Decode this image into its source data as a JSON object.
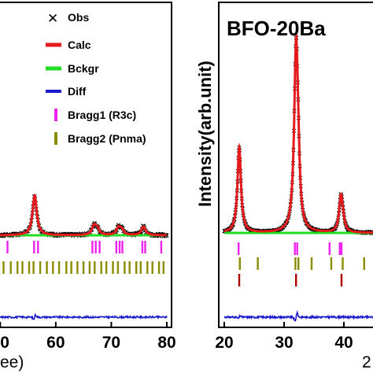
{
  "chart_data": [
    {
      "type": "line",
      "title": "",
      "xlabel_fragment": "ee)",
      "ylabel": "",
      "xlim": [
        45,
        80
      ],
      "xticks": [
        50,
        60,
        70,
        80
      ],
      "xtick_labels": [
        "50",
        "60",
        "70",
        "80"
      ],
      "legend": [
        {
          "label": "Obs",
          "marker": "x",
          "color": "#000000"
        },
        {
          "label": "Calc",
          "marker": "line",
          "color": "#e41a1c"
        },
        {
          "label": "Bckgr",
          "marker": "line",
          "color": "#22dd22"
        },
        {
          "label": "Diff",
          "marker": "line",
          "color": "#1a1acc"
        },
        {
          "label": "Bragg1 (R3c)",
          "marker": "bar",
          "color": "#ee22ee"
        },
        {
          "label": "Bragg2 (Pnma)",
          "marker": "bar",
          "color": "#8b8b00"
        }
      ],
      "legend_position": "top-right",
      "background": 0.9,
      "peaks": [
        {
          "x": 56.2,
          "height": 4.2,
          "width": 0.45
        },
        {
          "x": 66.9,
          "height": 1.0,
          "width": 0.45
        },
        {
          "x": 67.5,
          "height": 0.6,
          "width": 0.4
        },
        {
          "x": 71.3,
          "height": 0.8,
          "width": 0.45
        },
        {
          "x": 71.9,
          "height": 0.5,
          "width": 0.4
        },
        {
          "x": 75.8,
          "height": 0.9,
          "width": 0.45
        }
      ],
      "bragg1_positions": [
        51.3,
        56.1,
        56.8,
        66.6,
        67.2,
        67.9,
        70.9,
        71.5,
        72.0,
        75.6,
        76.1,
        79.0
      ],
      "bragg2_positions": [
        45.5,
        46.4,
        47.4,
        48.6,
        49.8,
        50.6,
        51.9,
        53.1,
        54.0,
        55.2,
        56.0,
        57.2,
        58.4,
        59.5,
        60.6,
        61.9,
        62.8,
        63.9,
        65.0,
        66.1,
        67.0,
        68.2,
        69.1,
        70.3,
        71.2,
        72.4,
        73.3,
        74.5,
        75.3,
        76.5,
        77.4,
        78.6,
        79.4
      ],
      "diff_features": [
        {
          "x": 56.2,
          "amplitude": 0.35
        }
      ]
    },
    {
      "type": "line",
      "title": "BFO-20Ba",
      "xlabel_fragment": "2",
      "ylabel": "Intensity(arb.unit)",
      "xlim": [
        20,
        45
      ],
      "xticks": [
        20,
        30,
        40
      ],
      "xtick_labels": [
        "20",
        "30",
        "40"
      ],
      "background": 0.9,
      "peaks": [
        {
          "x": 22.5,
          "height": 16.0,
          "width": 0.35
        },
        {
          "x": 32.0,
          "height": 33.5,
          "width": 0.38
        },
        {
          "x": 32.35,
          "height": 7.0,
          "width": 0.3
        },
        {
          "x": 39.5,
          "height": 6.5,
          "width": 0.35
        },
        {
          "x": 39.85,
          "height": 1.5,
          "width": 0.3
        }
      ],
      "bragg1_positions": [
        22.4,
        31.8,
        32.2,
        37.6,
        39.3,
        39.6
      ],
      "bragg2_positions": [
        22.6,
        25.6,
        31.9,
        32.4,
        34.6,
        37.9,
        39.8,
        43.4
      ],
      "bragg3_positions": [
        22.5,
        32.0,
        39.6
      ],
      "bragg3_color": "#aa0000",
      "diff_features": [
        {
          "x": 32.0,
          "amplitude": 0.6
        },
        {
          "x": 22.5,
          "amplitude": 0.2
        }
      ]
    }
  ]
}
